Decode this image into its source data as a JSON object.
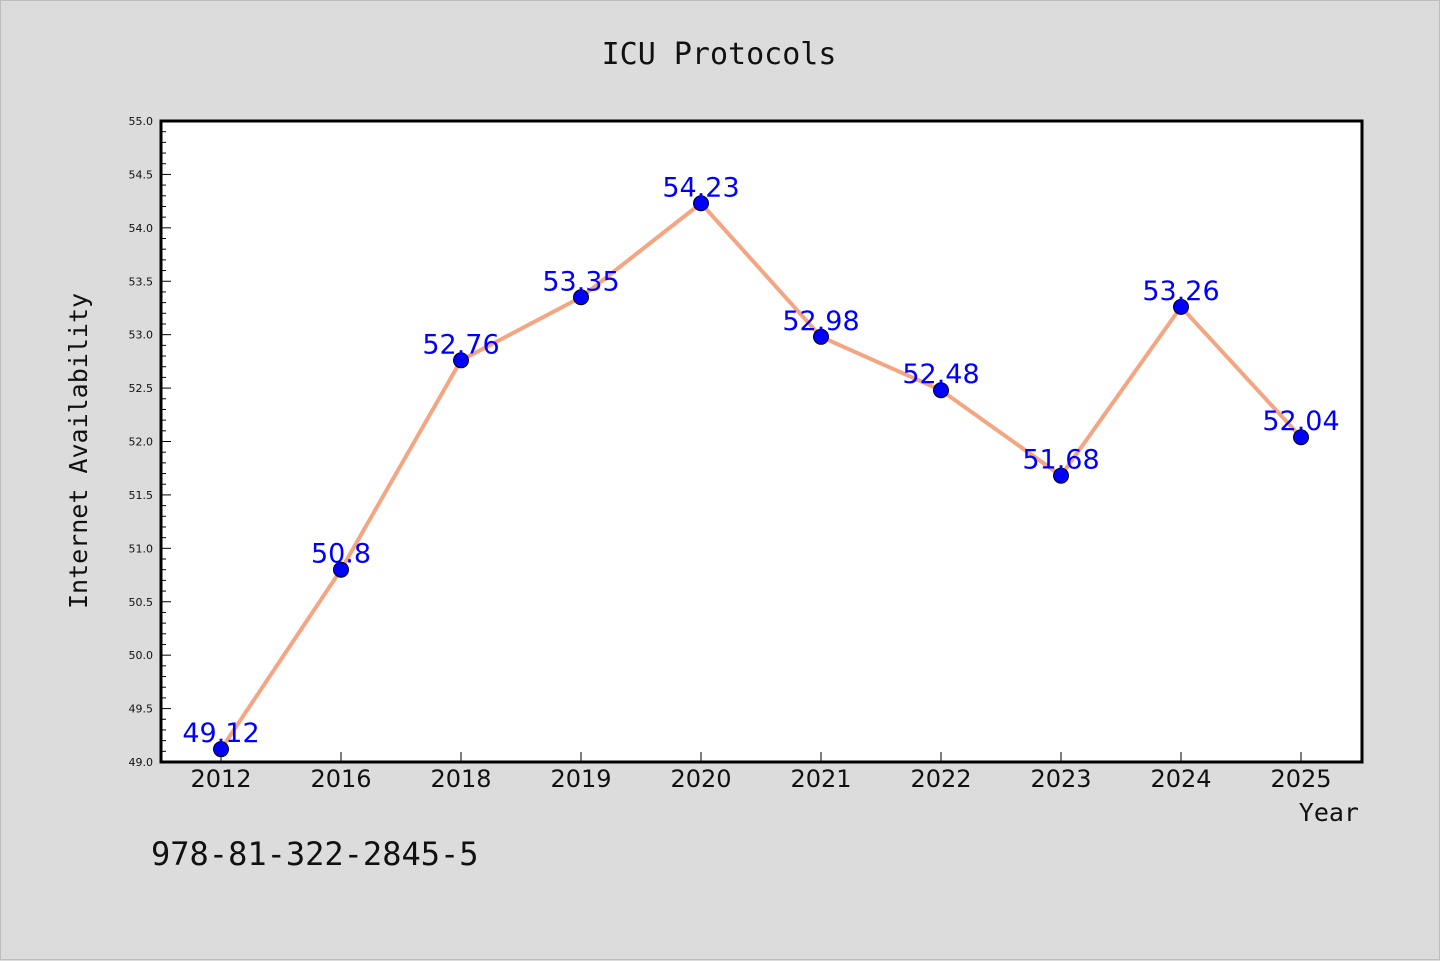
{
  "chart_data": {
    "type": "line",
    "title": "ICU Protocols",
    "xlabel": "Year",
    "ylabel": "Internet Availability",
    "categories": [
      "2012",
      "2016",
      "2018",
      "2019",
      "2020",
      "2021",
      "2022",
      "2023",
      "2024",
      "2025"
    ],
    "series": [
      {
        "values": [
          49.12,
          50.8,
          52.76,
          53.35,
          54.23,
          52.98,
          52.48,
          51.68,
          53.26,
          52.04
        ],
        "labels": [
          "49.12",
          "50.8",
          "52.76",
          "53.35",
          "54.23",
          "52.98",
          "52.48",
          "51.68",
          "53.26",
          "52.04"
        ]
      }
    ],
    "ylim": [
      49.0,
      55.0
    ],
    "yticks": [
      "49.0",
      "49.5",
      "50.0",
      "50.5",
      "51.0",
      "51.5",
      "52.0",
      "52.5",
      "53.0",
      "53.5",
      "54.0",
      "54.5",
      "55.0"
    ],
    "grid": false,
    "colors": {
      "line": "#f4a582",
      "marker": "#0000ff",
      "label": "#0000ff",
      "background": "#dcdcdc",
      "plot_bg": "#ffffff"
    }
  },
  "footer": {
    "isbn": "978-81-322-2845-5"
  }
}
